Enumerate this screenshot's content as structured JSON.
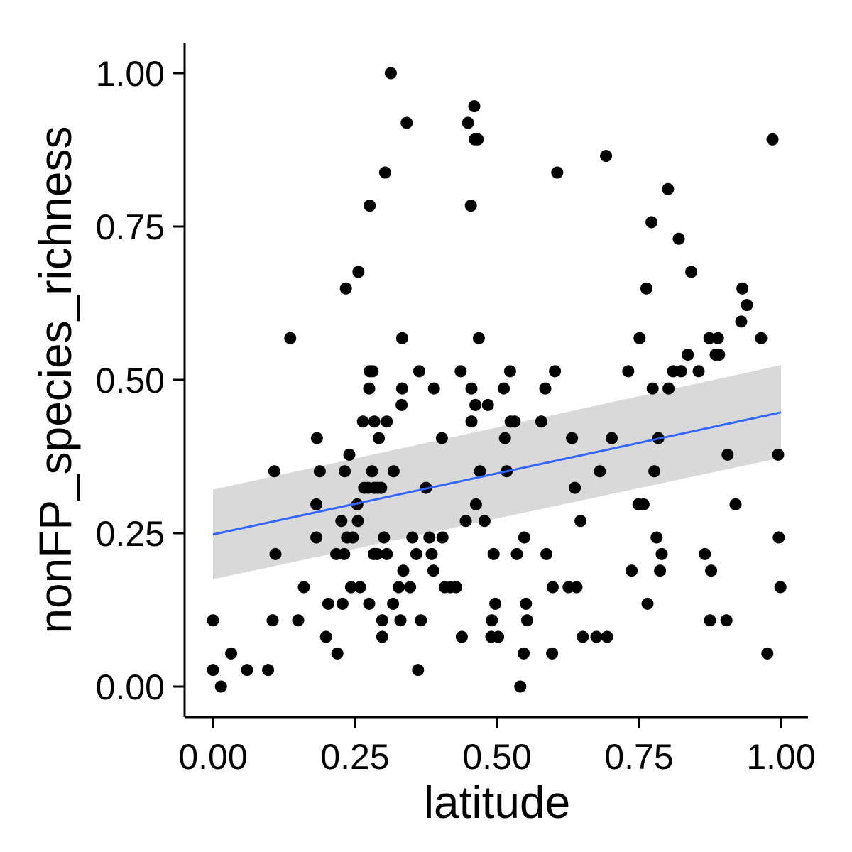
{
  "chart_data": {
    "type": "scatter",
    "title": "",
    "xlabel": "latitude",
    "ylabel": "nonFP_species_richness",
    "xlim": [
      -0.05,
      1.05
    ],
    "ylim": [
      -0.05,
      1.05
    ],
    "xticks": [
      "0.00",
      "0.25",
      "0.50",
      "0.75",
      "1.00"
    ],
    "yticks": [
      "0.00",
      "0.25",
      "0.50",
      "0.75",
      "1.00"
    ],
    "grid": false,
    "colors": {
      "points": "#000000",
      "fit_line": "#3366FF",
      "ribbon": "#BFBFBF",
      "axis": "#000000"
    },
    "points": [
      [
        0.0,
        0.108
      ],
      [
        0.0,
        0.027
      ],
      [
        0.014,
        0.0
      ],
      [
        0.032,
        0.054
      ],
      [
        0.06,
        0.027
      ],
      [
        0.097,
        0.027
      ],
      [
        0.105,
        0.108
      ],
      [
        0.108,
        0.351
      ],
      [
        0.11,
        0.216
      ],
      [
        0.136,
        0.568
      ],
      [
        0.15,
        0.108
      ],
      [
        0.16,
        0.162
      ],
      [
        0.182,
        0.297
      ],
      [
        0.182,
        0.243
      ],
      [
        0.183,
        0.405
      ],
      [
        0.188,
        0.351
      ],
      [
        0.199,
        0.081
      ],
      [
        0.203,
        0.135
      ],
      [
        0.217,
        0.216
      ],
      [
        0.219,
        0.054
      ],
      [
        0.226,
        0.27
      ],
      [
        0.228,
        0.135
      ],
      [
        0.231,
        0.216
      ],
      [
        0.232,
        0.351
      ],
      [
        0.234,
        0.649
      ],
      [
        0.236,
        0.243
      ],
      [
        0.24,
        0.378
      ],
      [
        0.243,
        0.162
      ],
      [
        0.246,
        0.243
      ],
      [
        0.254,
        0.297
      ],
      [
        0.255,
        0.27
      ],
      [
        0.256,
        0.676
      ],
      [
        0.259,
        0.162
      ],
      [
        0.264,
        0.432
      ],
      [
        0.266,
        0.324
      ],
      [
        0.273,
        0.324
      ],
      [
        0.275,
        0.135
      ],
      [
        0.275,
        0.486
      ],
      [
        0.276,
        0.784
      ],
      [
        0.276,
        0.514
      ],
      [
        0.28,
        0.351
      ],
      [
        0.281,
        0.514
      ],
      [
        0.283,
        0.216
      ],
      [
        0.284,
        0.324
      ],
      [
        0.284,
        0.432
      ],
      [
        0.289,
        0.216
      ],
      [
        0.29,
        0.324
      ],
      [
        0.292,
        0.405
      ],
      [
        0.296,
        0.324
      ],
      [
        0.298,
        0.108
      ],
      [
        0.298,
        0.081
      ],
      [
        0.301,
        0.243
      ],
      [
        0.303,
        0.838
      ],
      [
        0.306,
        0.432
      ],
      [
        0.306,
        0.216
      ],
      [
        0.313,
        1.0
      ],
      [
        0.317,
        0.135
      ],
      [
        0.318,
        0.351
      ],
      [
        0.327,
        0.162
      ],
      [
        0.33,
        0.108
      ],
      [
        0.332,
        0.459
      ],
      [
        0.333,
        0.486
      ],
      [
        0.333,
        0.568
      ],
      [
        0.335,
        0.189
      ],
      [
        0.341,
        0.919
      ],
      [
        0.347,
        0.162
      ],
      [
        0.351,
        0.243
      ],
      [
        0.358,
        0.216
      ],
      [
        0.361,
        0.027
      ],
      [
        0.363,
        0.514
      ],
      [
        0.366,
        0.108
      ],
      [
        0.375,
        0.324
      ],
      [
        0.381,
        0.243
      ],
      [
        0.385,
        0.216
      ],
      [
        0.388,
        0.189
      ],
      [
        0.389,
        0.486
      ],
      [
        0.403,
        0.405
      ],
      [
        0.404,
        0.243
      ],
      [
        0.408,
        0.162
      ],
      [
        0.418,
        0.162
      ],
      [
        0.428,
        0.162
      ],
      [
        0.436,
        0.514
      ],
      [
        0.438,
        0.081
      ],
      [
        0.445,
        0.27
      ],
      [
        0.449,
        0.919
      ],
      [
        0.454,
        0.784
      ],
      [
        0.455,
        0.486
      ],
      [
        0.455,
        0.432
      ],
      [
        0.46,
        0.946
      ],
      [
        0.461,
        0.892
      ],
      [
        0.462,
        0.459
      ],
      [
        0.463,
        0.297
      ],
      [
        0.466,
        0.892
      ],
      [
        0.468,
        0.568
      ],
      [
        0.47,
        0.351
      ],
      [
        0.478,
        0.27
      ],
      [
        0.484,
        0.459
      ],
      [
        0.49,
        0.081
      ],
      [
        0.491,
        0.108
      ],
      [
        0.494,
        0.216
      ],
      [
        0.497,
        0.135
      ],
      [
        0.502,
        0.081
      ],
      [
        0.512,
        0.486
      ],
      [
        0.514,
        0.405
      ],
      [
        0.517,
        0.351
      ],
      [
        0.523,
        0.514
      ],
      [
        0.524,
        0.432
      ],
      [
        0.531,
        0.432
      ],
      [
        0.535,
        0.216
      ],
      [
        0.541,
        0.0
      ],
      [
        0.547,
        0.054
      ],
      [
        0.548,
        0.243
      ],
      [
        0.551,
        0.135
      ],
      [
        0.553,
        0.108
      ],
      [
        0.578,
        0.432
      ],
      [
        0.585,
        0.486
      ],
      [
        0.587,
        0.216
      ],
      [
        0.597,
        0.054
      ],
      [
        0.598,
        0.162
      ],
      [
        0.602,
        0.514
      ],
      [
        0.606,
        0.838
      ],
      [
        0.626,
        0.162
      ],
      [
        0.632,
        0.405
      ],
      [
        0.637,
        0.324
      ],
      [
        0.64,
        0.162
      ],
      [
        0.647,
        0.27
      ],
      [
        0.651,
        0.081
      ],
      [
        0.675,
        0.081
      ],
      [
        0.681,
        0.351
      ],
      [
        0.692,
        0.865
      ],
      [
        0.694,
        0.081
      ],
      [
        0.702,
        0.405
      ],
      [
        0.731,
        0.514
      ],
      [
        0.737,
        0.189
      ],
      [
        0.749,
        0.297
      ],
      [
        0.751,
        0.568
      ],
      [
        0.758,
        0.297
      ],
      [
        0.763,
        0.649
      ],
      [
        0.765,
        0.135
      ],
      [
        0.772,
        0.757
      ],
      [
        0.774,
        0.486
      ],
      [
        0.777,
        0.351
      ],
      [
        0.781,
        0.243
      ],
      [
        0.784,
        0.405
      ],
      [
        0.787,
        0.189
      ],
      [
        0.79,
        0.216
      ],
      [
        0.801,
        0.811
      ],
      [
        0.802,
        0.486
      ],
      [
        0.81,
        0.514
      ],
      [
        0.82,
        0.73
      ],
      [
        0.824,
        0.514
      ],
      [
        0.836,
        0.541
      ],
      [
        0.842,
        0.676
      ],
      [
        0.855,
        0.514
      ],
      [
        0.866,
        0.216
      ],
      [
        0.874,
        0.568
      ],
      [
        0.875,
        0.108
      ],
      [
        0.877,
        0.189
      ],
      [
        0.885,
        0.541
      ],
      [
        0.889,
        0.568
      ],
      [
        0.891,
        0.541
      ],
      [
        0.904,
        0.108
      ],
      [
        0.906,
        0.378
      ],
      [
        0.92,
        0.297
      ],
      [
        0.93,
        0.595
      ],
      [
        0.932,
        0.649
      ],
      [
        0.94,
        0.622
      ],
      [
        0.965,
        0.568
      ],
      [
        0.976,
        0.054
      ],
      [
        0.985,
        0.892
      ],
      [
        0.995,
        0.378
      ],
      [
        0.996,
        0.243
      ],
      [
        0.999,
        0.162
      ]
    ],
    "fit": {
      "x": [
        0.0,
        1.0
      ],
      "y": [
        0.248,
        0.447
      ],
      "ci_low": [
        0.175,
        0.373
      ],
      "ci_high": [
        0.321,
        0.524
      ]
    }
  }
}
